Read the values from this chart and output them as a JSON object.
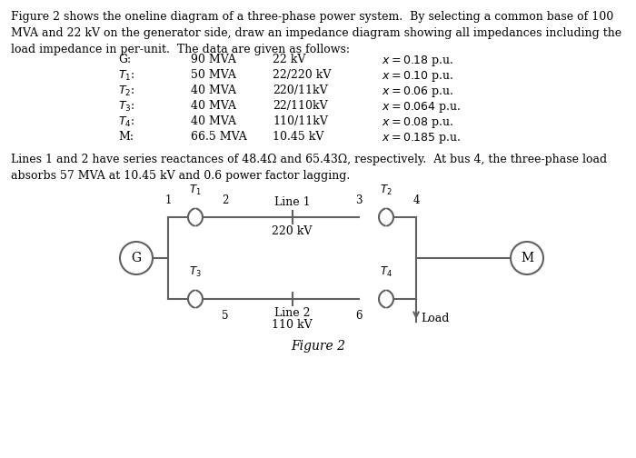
{
  "title_text": "Figure 2 shows the oneline diagram of a three-phase power system.  By selecting a common base of 100\nMVA and 22 kV on the generator side, draw an impedance diagram showing all impedances including the\nload impedance in per-unit.  The data are given as follows:",
  "table": {
    "labels": [
      "G:",
      "T\\u2081:",
      "T\\u2082:",
      "T\\u2083:",
      "T\\u2084:",
      "M:"
    ],
    "mva": [
      "90 MVA",
      "50 MVA",
      "40 MVA",
      "40 MVA",
      "40 MVA",
      "66.5 MVA"
    ],
    "kv": [
      "22 kV",
      "22/220 kV",
      "220/11kV",
      "22/110kV",
      "110/11kV",
      "10.45 kV"
    ],
    "x": [
      "x = 0.18 p.u.",
      "x = 0.10 p.u.",
      "x = 0.06 p.u.",
      "x = 0.064 p.u.",
      "x = 0.08 p.u.",
      "x = 0.185 p.u."
    ]
  },
  "lines_text": "Lines 1 and 2 have series reactances of 48.4Ω and 65.43Ω, respectively.  At bus 4, the three-phase load\nabsorbs 57 MVA at 10.45 kV and 0.6 power factor lagging.",
  "figure_caption": "Figure 2",
  "bg_color": "#ffffff",
  "text_color": "#000000",
  "line_color": "#808080",
  "font_size": 9
}
